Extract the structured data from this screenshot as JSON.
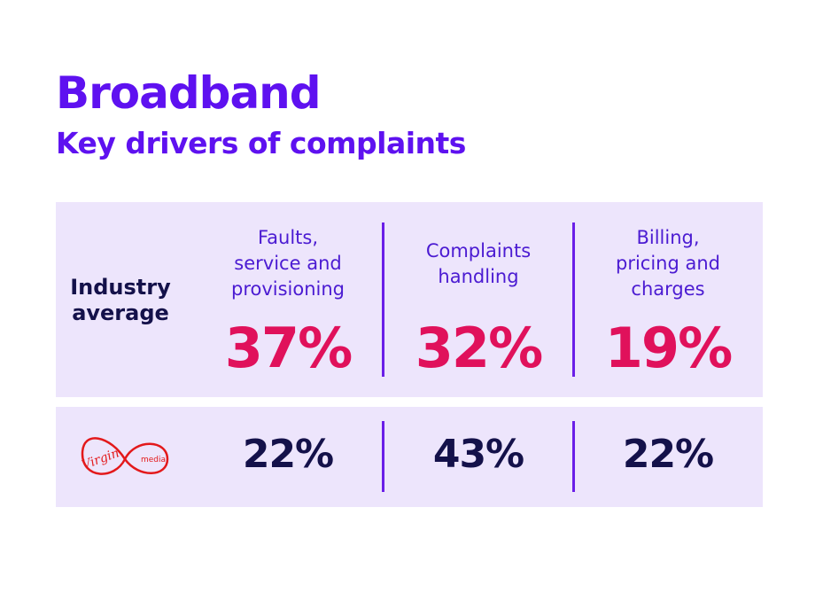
{
  "header": {
    "title": "Broadband",
    "subtitle": "Key drivers of complaints"
  },
  "table": {
    "columns": [
      [
        "Faults,",
        "service and",
        "provisioning"
      ],
      [
        "Complaints",
        "handling"
      ],
      [
        "Billing,",
        "pricing and",
        "charges"
      ]
    ],
    "rows": [
      {
        "label": [
          "Industry",
          "average"
        ],
        "values": [
          "37%",
          "32%",
          "19%"
        ]
      },
      {
        "logo": {
          "brand": "Virgin",
          "sub": "media"
        },
        "values": [
          "22%",
          "43%",
          "22%"
        ]
      }
    ]
  }
}
